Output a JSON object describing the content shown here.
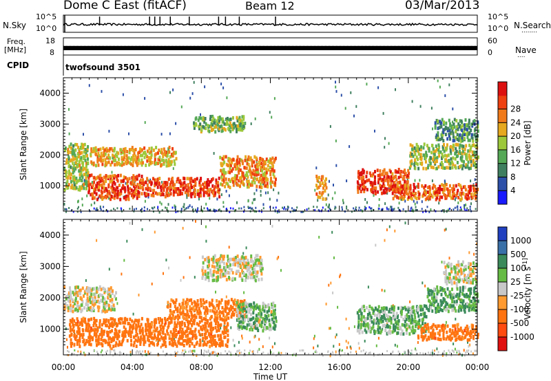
{
  "header": {
    "station": "Dome C East (fitACF)",
    "beam": "Beam 12",
    "date": "03/Mar/2013"
  },
  "side_labels": {
    "nsky": "N.Sky",
    "nsearch": "N.Search",
    "nsearch_dots": "........",
    "freq": "Freq.",
    "freq_unit": "[MHz]",
    "nave": "Nave",
    "nave_dots": "....",
    "cpid": "CPID",
    "cpid_value": "twofsound 3501"
  },
  "strip_ticks": {
    "noise_left": [
      "10^5",
      "10^0"
    ],
    "noise_right": [
      "10^5",
      "10^0"
    ],
    "freq_left": [
      "18",
      "8"
    ],
    "freq_right": [
      "60",
      "0"
    ]
  },
  "colors": {
    "power": [
      "#1a1aff",
      "#2c4fa8",
      "#3f7f5f",
      "#55a856",
      "#9cc83a",
      "#e6a81e",
      "#f07a1a",
      "#ee4010",
      "#dd1010"
    ],
    "velocity": [
      "#2040c0",
      "#3a70a8",
      "#3a8a5a",
      "#66bb44",
      "#c8c8c8",
      "#ff9a30",
      "#ff7410",
      "#ff4a10",
      "#e01010"
    ]
  },
  "chart_data": [
    {
      "type": "heatmap",
      "xlabel": "",
      "ylabel": "Slant Range [km]",
      "x_ticks": [
        "00:00",
        "04:00",
        "08:00",
        "12:00",
        "16:00",
        "20:00",
        "00:00"
      ],
      "y_ticks": [
        1000,
        2000,
        3000,
        4000
      ],
      "ylim": [
        180,
        4500
      ],
      "colorbar": {
        "label": "Power [dB]",
        "ticks": [
          "4",
          "8",
          "12",
          "16",
          "20",
          "24",
          "28"
        ],
        "range": [
          0,
          32
        ]
      },
      "regions": [
        {
          "t0": 0.0,
          "t1": 1.4,
          "r0": 900,
          "r1": 2400,
          "level": 16
        },
        {
          "t0": 1.4,
          "t1": 4.5,
          "r0": 600,
          "r1": 1400,
          "level": 26
        },
        {
          "t0": 1.5,
          "t1": 6.5,
          "r0": 1700,
          "r1": 2300,
          "level": 20
        },
        {
          "t0": 4.5,
          "t1": 9.0,
          "r0": 700,
          "r1": 1300,
          "level": 27
        },
        {
          "t0": 7.5,
          "t1": 10.5,
          "r0": 2800,
          "r1": 3300,
          "level": 14
        },
        {
          "t0": 9.0,
          "t1": 12.3,
          "r0": 1000,
          "r1": 2000,
          "level": 22
        },
        {
          "t0": 14.6,
          "t1": 15.2,
          "r0": 600,
          "r1": 1400,
          "level": 24
        },
        {
          "t0": 17.0,
          "t1": 20.0,
          "r0": 800,
          "r1": 1600,
          "level": 27
        },
        {
          "t0": 19.0,
          "t1": 24.0,
          "r0": 600,
          "r1": 1100,
          "level": 25
        },
        {
          "t0": 20.0,
          "t1": 24.0,
          "r0": 1600,
          "r1": 2400,
          "level": 15
        },
        {
          "t0": 21.5,
          "t1": 24.0,
          "r0": 2500,
          "r1": 3200,
          "level": 10
        }
      ]
    },
    {
      "type": "heatmap",
      "xlabel": "Time UT",
      "ylabel": "Slant Range [km]",
      "x_ticks": [
        "00:00",
        "04:00",
        "08:00",
        "12:00",
        "16:00",
        "20:00",
        "00:00"
      ],
      "y_ticks": [
        1000,
        2000,
        3000,
        4000
      ],
      "ylim": [
        180,
        4500
      ],
      "colorbar": {
        "label": "Velocity [m s^-1]",
        "ticks": [
          "1000",
          "500",
          "100",
          "25",
          "-25",
          "-100",
          "-500",
          "-1000"
        ],
        "range": [
          -1500,
          1500
        ]
      },
      "regions": [
        {
          "t0": 0.0,
          "t1": 3.0,
          "r0": 1600,
          "r1": 2400,
          "level": 0
        },
        {
          "t0": 0.3,
          "t1": 9.5,
          "r0": 500,
          "r1": 1400,
          "level": -300
        },
        {
          "t0": 6.0,
          "t1": 10.5,
          "r0": 1400,
          "r1": 2000,
          "level": -200
        },
        {
          "t0": 8.0,
          "t1": 11.5,
          "r0": 2600,
          "r1": 3400,
          "level": 0
        },
        {
          "t0": 10.0,
          "t1": 12.3,
          "r0": 1000,
          "r1": 1900,
          "level": 60
        },
        {
          "t0": 17.0,
          "t1": 21.0,
          "r0": 900,
          "r1": 1800,
          "level": 80
        },
        {
          "t0": 20.5,
          "t1": 24.0,
          "r0": 700,
          "r1": 1200,
          "level": -300
        },
        {
          "t0": 21.0,
          "t1": 24.0,
          "r0": 1600,
          "r1": 2400,
          "level": 120
        },
        {
          "t0": 22.0,
          "t1": 24.0,
          "r0": 2500,
          "r1": 3200,
          "level": 0
        }
      ]
    }
  ]
}
